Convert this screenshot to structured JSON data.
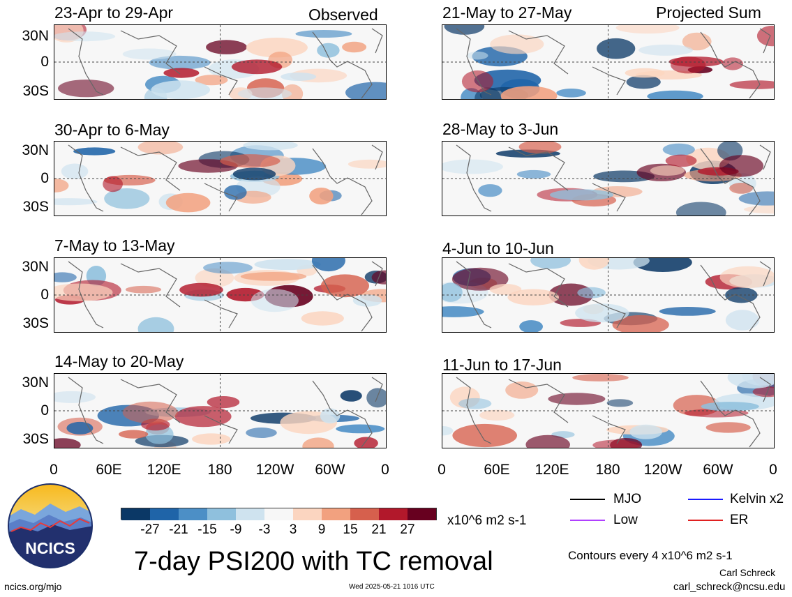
{
  "panels": [
    {
      "title": "23-Apr to 29-Apr",
      "tag": "Observed"
    },
    {
      "title": "30-Apr to 6-May",
      "tag": ""
    },
    {
      "title": "7-May to 13-May",
      "tag": ""
    },
    {
      "title": "14-May to 20-May",
      "tag": ""
    },
    {
      "title": "21-May to 27-May",
      "tag": "Projected Sum"
    },
    {
      "title": "28-May to 3-Jun",
      "tag": ""
    },
    {
      "title": "4-Jun to 10-Jun",
      "tag": ""
    },
    {
      "title": "11-Jun to 17-Jun",
      "tag": ""
    }
  ],
  "lat_labels": [
    "30N",
    "0",
    "30S"
  ],
  "lon_labels": [
    "0",
    "60E",
    "120E",
    "180",
    "120W",
    "60W",
    "0"
  ],
  "colorbar": {
    "labels": [
      "-27",
      "-21",
      "-15",
      "-9",
      "-3",
      "3",
      "9",
      "15",
      "21",
      "27"
    ],
    "units": "x10^6 m2 s-1",
    "colors": [
      "#0b3866",
      "#1f64a8",
      "#4c8fc6",
      "#8fc0dd",
      "#cfe3ef",
      "#f7f7f7",
      "#fbd5c0",
      "#f2a17f",
      "#d6604d",
      "#b2182b",
      "#67001f"
    ]
  },
  "legend": {
    "mjo": "MJO",
    "kelvin": "Kelvin x2",
    "low": "Low",
    "er": "ER",
    "contours": "Contours every 4 x10^6 m2 s-1"
  },
  "legend_colors": {
    "mjo": "#000000",
    "kelvin": "#1a1aff",
    "low": "#b040ff",
    "er": "#e02020"
  },
  "main_title": "7-day PSI200 with TC removal",
  "logo_text": "NCICS",
  "footer": {
    "site": "ncics.org/mjo",
    "timestamp": "Wed 2025-05-21 1016 UTC",
    "author": "Carl Schreck",
    "email": "carl_schreck@ncsu.edu"
  }
}
